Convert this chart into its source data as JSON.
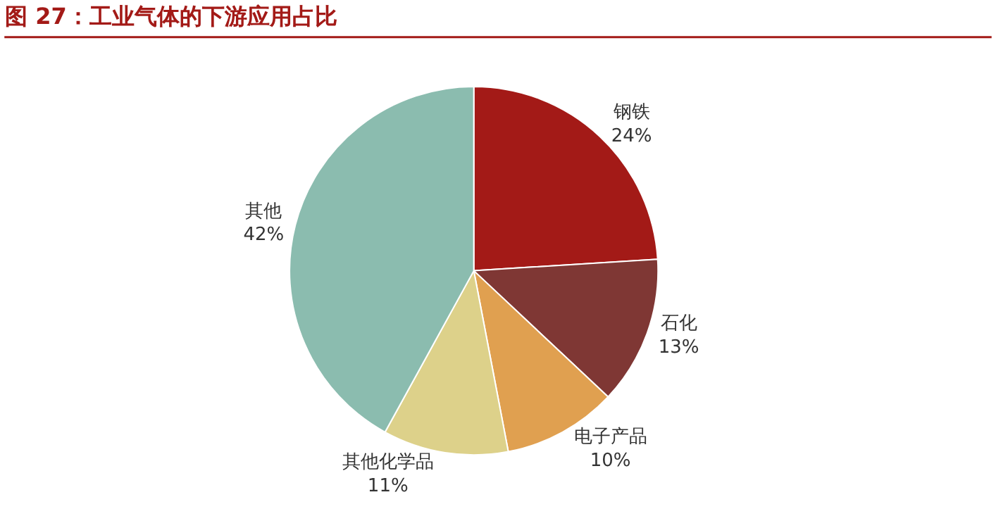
{
  "chart_data": {
    "type": "pie",
    "title": "图 27：工业气体的下游应用占比",
    "categories": [
      "钢铁",
      "石化",
      "电子产品",
      "其他化学品",
      "其他"
    ],
    "values": [
      24,
      13,
      10,
      11,
      42
    ],
    "colors": [
      "#a31a17",
      "#7f3734",
      "#e0a050",
      "#ddd18a",
      "#8bbcaf"
    ],
    "value_labels": [
      "24%",
      "13%",
      "10%",
      "11%",
      "42%"
    ],
    "legend": false
  }
}
